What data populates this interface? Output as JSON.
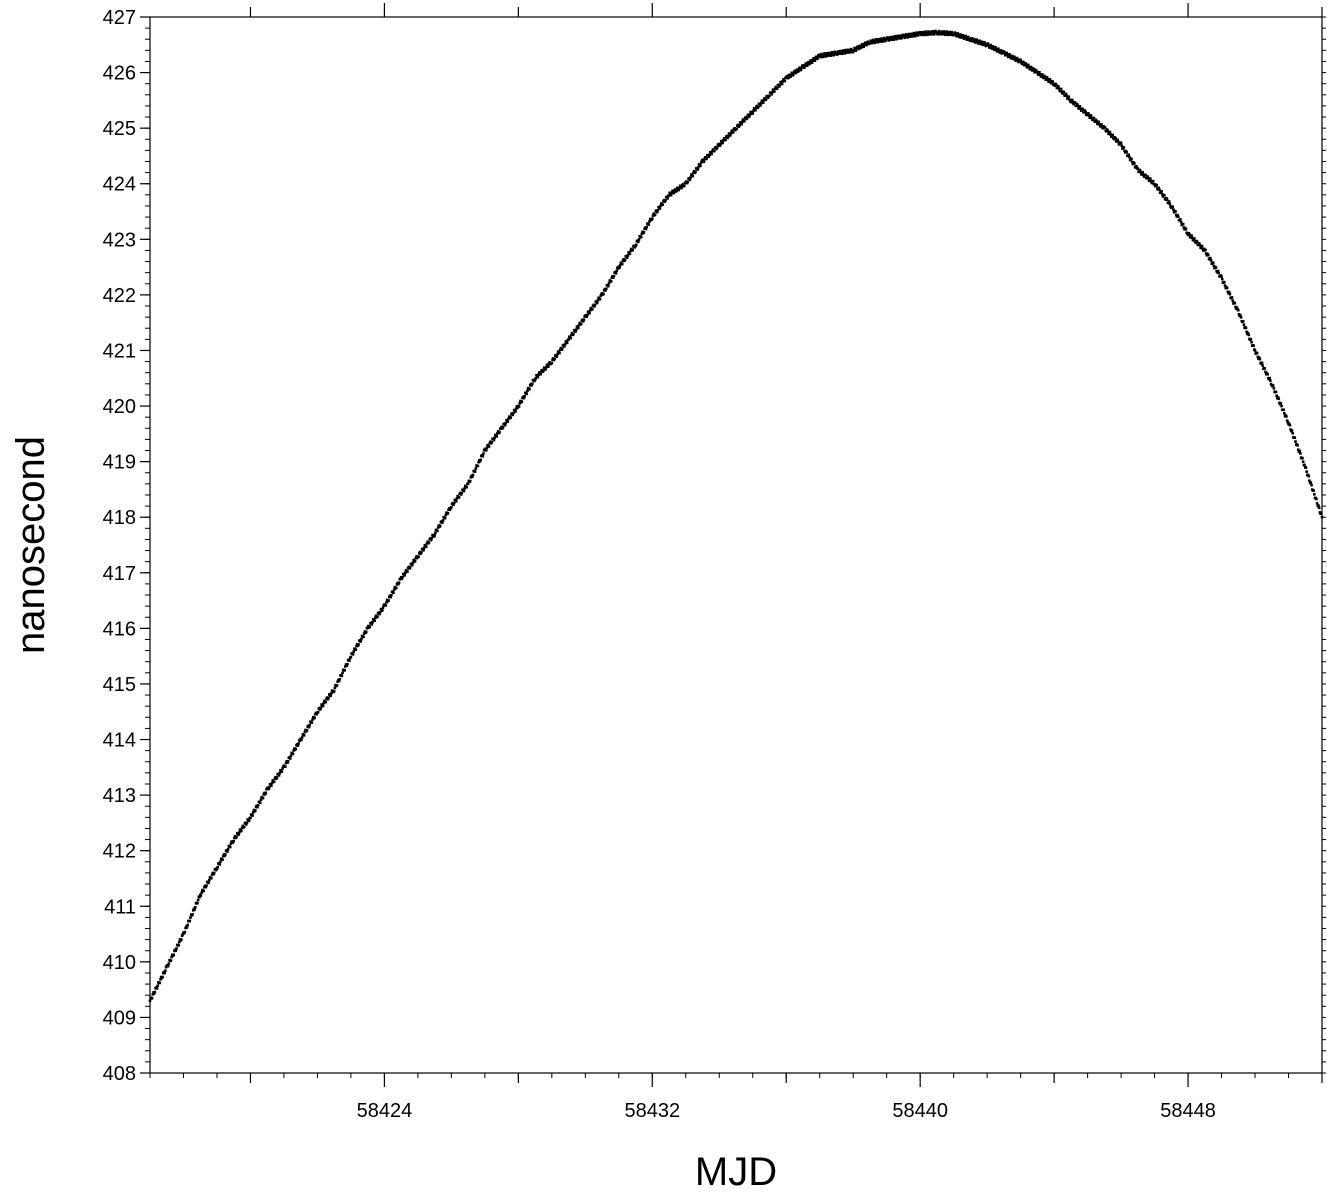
{
  "chart_data": {
    "type": "scatter",
    "title": "",
    "xlabel": "MJD",
    "ylabel": "nanosecond",
    "xlim": [
      58417,
      58452
    ],
    "ylim": [
      408,
      427
    ],
    "x_ticks": [
      58424,
      58432,
      58440,
      58448
    ],
    "x_tick_labels": [
      "58424",
      "58432",
      "58440",
      "58448"
    ],
    "y_ticks": [
      408,
      409,
      410,
      411,
      412,
      413,
      414,
      415,
      416,
      417,
      418,
      419,
      420,
      421,
      422,
      423,
      424,
      425,
      426,
      427
    ],
    "y_tick_labels": [
      "408",
      "409",
      "410",
      "411",
      "412",
      "413",
      "414",
      "415",
      "416",
      "417",
      "418",
      "419",
      "420",
      "421",
      "422",
      "423",
      "424",
      "425",
      "426",
      "427"
    ],
    "grid": false,
    "marker_color": "#000000",
    "series": [
      {
        "name": "",
        "x": [
          58417.0,
          58417.5,
          58418.0,
          58418.5,
          58419.0,
          58419.5,
          58420.0,
          58420.5,
          58421.0,
          58421.5,
          58422.0,
          58422.5,
          58423.0,
          58423.5,
          58424.0,
          58424.5,
          58425.0,
          58425.5,
          58426.0,
          58426.5,
          58427.0,
          58427.5,
          58428.0,
          58428.5,
          58429.0,
          58429.5,
          58430.0,
          58430.5,
          58431.0,
          58431.5,
          58432.0,
          58432.5,
          58433.0,
          58433.5,
          58434.0,
          58434.5,
          58435.0,
          58435.5,
          58436.0,
          58436.5,
          58437.0,
          58437.5,
          58438.0,
          58438.5,
          58439.0,
          58439.5,
          58440.0,
          58440.5,
          58441.0,
          58441.5,
          58442.0,
          58442.5,
          58443.0,
          58443.5,
          58444.0,
          58444.5,
          58445.0,
          58445.5,
          58446.0,
          58446.5,
          58447.0,
          58447.5,
          58448.0,
          58448.5,
          58449.0,
          58449.5,
          58450.0,
          58450.5,
          58451.0,
          58451.5,
          58452.0
        ],
        "y": [
          409.3,
          409.9,
          410.5,
          411.2,
          411.7,
          412.2,
          412.6,
          413.1,
          413.5,
          414.0,
          414.5,
          414.9,
          415.5,
          416.0,
          416.4,
          416.9,
          417.3,
          417.7,
          418.2,
          418.6,
          419.2,
          419.6,
          420.0,
          420.5,
          420.8,
          421.2,
          421.6,
          422.0,
          422.5,
          422.9,
          423.4,
          423.8,
          424.0,
          424.4,
          424.7,
          425.0,
          425.3,
          425.6,
          425.9,
          426.1,
          426.3,
          426.35,
          426.4,
          426.55,
          426.6,
          426.65,
          426.7,
          426.72,
          426.7,
          426.6,
          426.5,
          426.35,
          426.2,
          426.0,
          425.8,
          425.5,
          425.25,
          425.0,
          424.7,
          424.25,
          424.0,
          423.6,
          423.1,
          422.8,
          422.3,
          421.7,
          421.0,
          420.4,
          419.7,
          418.9,
          418.0
        ],
        "note_range": ""
      }
    ]
  }
}
